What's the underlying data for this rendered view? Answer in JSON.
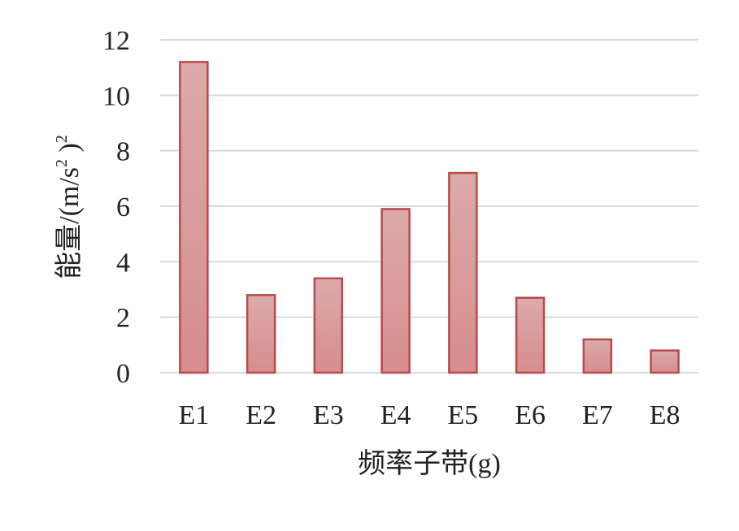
{
  "chart_data": {
    "type": "bar",
    "categories": [
      "E1",
      "E2",
      "E3",
      "E4",
      "E5",
      "E6",
      "E7",
      "E8"
    ],
    "values": [
      11.2,
      2.8,
      3.4,
      5.9,
      7.2,
      2.7,
      1.2,
      0.8
    ],
    "title": "",
    "xlabel": "频率子带(g)",
    "ylabel": "能量/(m/s",
    "ylabel_sup": "2",
    "ylabel_tail": " )",
    "ylabel_sup2": "2",
    "ylim": [
      0,
      12
    ],
    "yticks": [
      0,
      2,
      4,
      6,
      8,
      10,
      12
    ],
    "grid": true,
    "legend": "none",
    "colors": {
      "bar_fill_top": "#dcaaaa",
      "bar_fill_bottom": "#d68d8d",
      "bar_stroke": "#b84a4a",
      "grid": "#d9d9d9"
    }
  }
}
